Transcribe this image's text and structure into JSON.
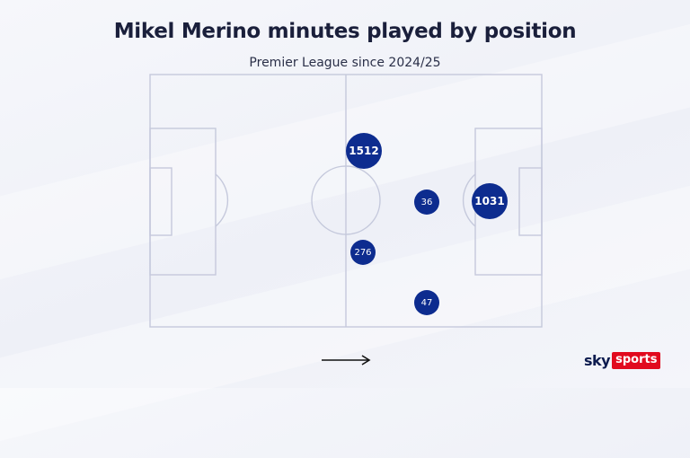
{
  "header": {
    "title": "Mikel Merino minutes played by position",
    "subtitle": "Premier League since 2024/25"
  },
  "positions": [
    {
      "id": "centre-midfield-upper",
      "minutes": "1512"
    },
    {
      "id": "striker",
      "minutes": "1031"
    },
    {
      "id": "attacking-midfield",
      "minutes": "36"
    },
    {
      "id": "centre-midfield-lower",
      "minutes": "276"
    },
    {
      "id": "left-wing",
      "minutes": "47"
    }
  ],
  "attack_direction": "right",
  "branding": {
    "logo_text_1": "sky",
    "logo_text_2": "sports",
    "colors": {
      "bubble": "#0d2c8f",
      "pitch_lines": "#c5c9dc",
      "logo_red": "#e10a1e",
      "logo_navy": "#0d1b4f"
    }
  }
}
